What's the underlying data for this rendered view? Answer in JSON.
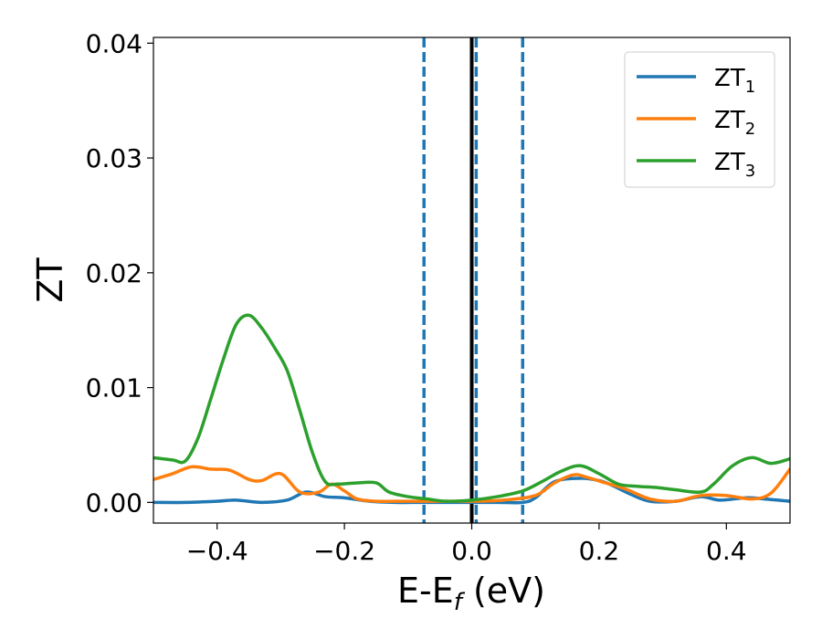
{
  "chart_data": {
    "type": "line",
    "xlabel": {
      "main": "E-E",
      "sub": "f",
      "suffix": " (eV)"
    },
    "ylabel": "ZT",
    "xlim": [
      -0.5,
      0.5
    ],
    "ylim": [
      -0.0018,
      0.0405
    ],
    "xticks": [
      -0.4,
      -0.2,
      0.0,
      0.2,
      0.4
    ],
    "xtick_labels": [
      "−0.4",
      "−0.2",
      "0.0",
      "0.2",
      "0.4"
    ],
    "yticks": [
      0.0,
      0.01,
      0.02,
      0.03,
      0.04
    ],
    "ytick_labels": [
      "0.00",
      "0.01",
      "0.02",
      "0.03",
      "0.04"
    ],
    "grid": false,
    "legend_position": "top-right",
    "vertical_lines": [
      {
        "x": -0.075,
        "style": "dashed",
        "color": "#1f77b4"
      },
      {
        "x": 0.0,
        "style": "solid",
        "color": "#000000"
      },
      {
        "x": 0.007,
        "style": "dashed",
        "color": "#1f77b4"
      },
      {
        "x": 0.08,
        "style": "dashed",
        "color": "#1f77b4"
      }
    ],
    "series": [
      {
        "name": "ZT",
        "name_sub": "1",
        "color": "#1f77b4",
        "x": [
          -0.5,
          -0.45,
          -0.4,
          -0.37,
          -0.33,
          -0.29,
          -0.26,
          -0.23,
          -0.2,
          -0.16,
          -0.12,
          -0.08,
          -0.04,
          0.0,
          0.04,
          0.08,
          0.1,
          0.13,
          0.17,
          0.2,
          0.22,
          0.25,
          0.28,
          0.32,
          0.36,
          0.39,
          0.43,
          0.46,
          0.5
        ],
        "y": [
          0.0,
          0.0,
          0.0001,
          0.0002,
          0.0,
          0.0002,
          0.0009,
          0.0005,
          0.0004,
          0.0001,
          0.0,
          0.0,
          0.0,
          0.0,
          0.0,
          0.0,
          0.0004,
          0.0018,
          0.0021,
          0.0019,
          0.0015,
          0.0007,
          0.0001,
          0.0001,
          0.0005,
          0.0002,
          0.0004,
          0.0003,
          0.0001
        ]
      },
      {
        "name": "ZT",
        "name_sub": "2",
        "color": "#ff7f0e",
        "x": [
          -0.5,
          -0.47,
          -0.44,
          -0.41,
          -0.38,
          -0.35,
          -0.33,
          -0.3,
          -0.27,
          -0.24,
          -0.22,
          -0.2,
          -0.18,
          -0.15,
          -0.12,
          -0.09,
          -0.05,
          0.0,
          0.05,
          0.1,
          0.13,
          0.16,
          0.18,
          0.21,
          0.24,
          0.28,
          0.32,
          0.36,
          0.4,
          0.44,
          0.47,
          0.5
        ],
        "y": [
          0.002,
          0.0025,
          0.0031,
          0.0029,
          0.0028,
          0.002,
          0.0019,
          0.0025,
          0.0009,
          0.0009,
          0.0016,
          0.001,
          0.0003,
          0.0001,
          0.0001,
          0.0001,
          0.0001,
          0.0001,
          0.0002,
          0.0006,
          0.0017,
          0.0024,
          0.0022,
          0.0017,
          0.0012,
          0.0003,
          0.0001,
          0.0006,
          0.0006,
          0.0003,
          0.0008,
          0.0029
        ]
      },
      {
        "name": "ZT",
        "name_sub": "3",
        "color": "#2ca02c",
        "x": [
          -0.5,
          -0.47,
          -0.45,
          -0.43,
          -0.41,
          -0.39,
          -0.37,
          -0.35,
          -0.33,
          -0.31,
          -0.29,
          -0.27,
          -0.25,
          -0.23,
          -0.21,
          -0.18,
          -0.15,
          -0.13,
          -0.1,
          -0.07,
          -0.04,
          0.0,
          0.04,
          0.08,
          0.11,
          0.14,
          0.17,
          0.2,
          0.23,
          0.26,
          0.29,
          0.32,
          0.36,
          0.38,
          0.41,
          0.44,
          0.47,
          0.5
        ],
        "y": [
          0.0039,
          0.0037,
          0.0036,
          0.0056,
          0.009,
          0.0125,
          0.0155,
          0.0163,
          0.0152,
          0.0135,
          0.0115,
          0.008,
          0.0043,
          0.0018,
          0.0016,
          0.0017,
          0.0017,
          0.0009,
          0.0005,
          0.0003,
          0.0001,
          0.0002,
          0.0005,
          0.001,
          0.0018,
          0.0027,
          0.0032,
          0.0025,
          0.0016,
          0.0014,
          0.0013,
          0.0011,
          0.0009,
          0.0016,
          0.0032,
          0.0039,
          0.0034,
          0.0038
        ]
      }
    ]
  }
}
